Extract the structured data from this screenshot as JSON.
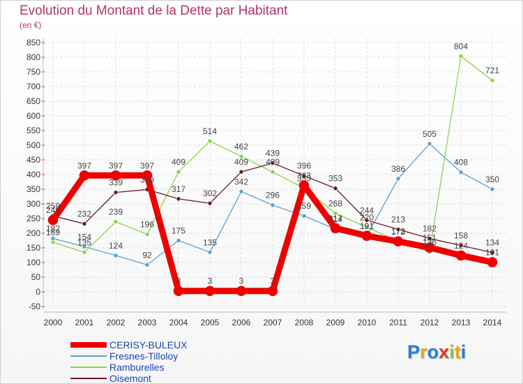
{
  "chart_data": {
    "type": "line",
    "title": "Evolution du Montant de la Dette par Habitant",
    "unit_label": "(en €)",
    "x": [
      "2000",
      "2001",
      "2002",
      "2003",
      "2004",
      "2005",
      "2006",
      "2007",
      "2008",
      "2009",
      "2010",
      "2011",
      "2012",
      "2013",
      "2014"
    ],
    "ylim": [
      -50,
      850
    ],
    "yticks": [
      -50,
      0,
      50,
      100,
      150,
      200,
      250,
      300,
      350,
      400,
      450,
      500,
      550,
      600,
      650,
      700,
      750,
      800,
      850
    ],
    "grid": true,
    "legend_position": "bottom-left",
    "series": [
      {
        "name": "CERISY-BULEUX",
        "color": "#ee0000",
        "emphasized": true,
        "values": [
          245,
          397,
          397,
          397,
          3,
          3,
          3,
          3,
          363,
          217,
          191,
          172,
          151,
          124,
          101
        ],
        "labels": [
          "245",
          "397",
          "397",
          "397",
          "3",
          "3",
          "3",
          "3",
          "363",
          "217",
          "191",
          "172",
          "151",
          "124",
          "101"
        ]
      },
      {
        "name": "Fresnes-Tilloloy",
        "color": "#5a9fd4",
        "emphasized": false,
        "values": [
          182,
          154,
          124,
          92,
          175,
          135,
          342,
          296,
          259,
          214,
          191,
          386,
          505,
          408,
          350
        ],
        "labels": [
          "182",
          "154",
          "124",
          "92",
          "175",
          "135",
          "342",
          "296",
          "259",
          "214",
          "191",
          "386",
          "505",
          "408",
          "350"
        ]
      },
      {
        "name": "Ramburelles",
        "color": "#8ad34a",
        "emphasized": false,
        "values": [
          169,
          135,
          239,
          196,
          409,
          514,
          462,
          409,
          353,
          268,
          220,
          173,
          136,
          804,
          721
        ],
        "labels": [
          "169",
          "135",
          "239",
          "196",
          "409",
          "514",
          "462",
          "409",
          "353",
          "268",
          "220",
          "173",
          "136",
          "804",
          "721"
        ]
      },
      {
        "name": "Oisemont",
        "color": "#6b1a22",
        "emphasized": false,
        "values": [
          259,
          232,
          339,
          349,
          317,
          302,
          409,
          439,
          396,
          353,
          244,
          213,
          182,
          158,
          134
        ],
        "labels": [
          "259",
          "232",
          "339",
          "349",
          "317",
          "302",
          "409",
          "439",
          "396",
          "353",
          "244",
          "213",
          "182",
          "158",
          "134"
        ]
      }
    ]
  },
  "brand": {
    "text": "Proxiti",
    "letters": [
      {
        "ch": "P",
        "color": "#2b7fd0"
      },
      {
        "ch": "r",
        "color": "#f4a11a"
      },
      {
        "ch": "o",
        "color": "#2b7fd0"
      },
      {
        "ch": "x",
        "color": "#e5332a"
      },
      {
        "ch": "i",
        "color": "#8ac43f"
      },
      {
        "ch": "t",
        "color": "#f4a11a"
      },
      {
        "ch": "i",
        "color": "#2b7fd0"
      }
    ]
  }
}
